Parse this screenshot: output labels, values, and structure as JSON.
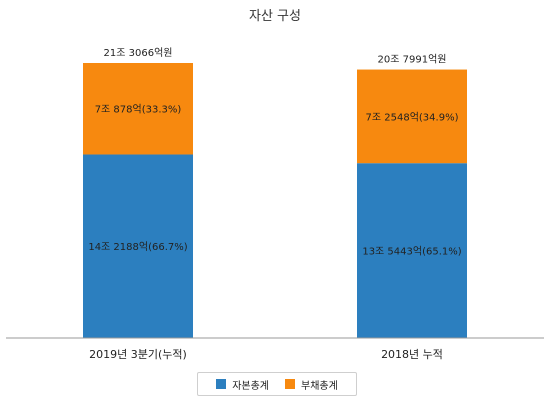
{
  "chart_data": {
    "type": "bar",
    "stacked": true,
    "title": "자산 구성",
    "categories": [
      "2019년 3분기(누적)",
      "2018년 누적"
    ],
    "totals": [
      {
        "label": "21조 3066억원",
        "value": 213066
      },
      {
        "label": "20조 7991억원",
        "value": 207991
      }
    ],
    "series": [
      {
        "name": "자본총계",
        "color": "#2c7fbf",
        "values": [
          142188,
          135443
        ],
        "labels": [
          "14조 2188억(66.7%)",
          "13조 5443억(65.1%)"
        ]
      },
      {
        "name": "부채총계",
        "color": "#f7890f",
        "values": [
          70878,
          72548
        ],
        "labels": [
          "7조 878억(33.3%)",
          "7조 2548억(34.9%)"
        ]
      }
    ],
    "grid": false,
    "legend_position": "bottom"
  }
}
